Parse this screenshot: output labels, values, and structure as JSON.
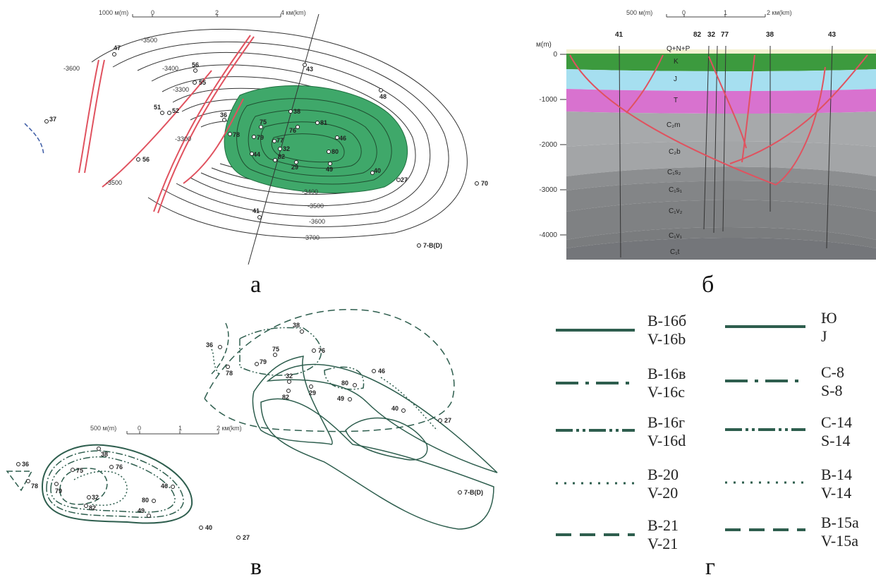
{
  "panel_a": {
    "letter": "а",
    "scale_label": "1000 м(m)",
    "scale_ticks": [
      "0",
      "2",
      "4 км(km)"
    ],
    "contour_labels": [
      "-3500",
      "-3400",
      "-3300",
      "-3300",
      "-3500",
      "-3600",
      "-3400",
      "-3500",
      "-3600",
      "-3700"
    ],
    "wells": [
      "47",
      "56",
      "55",
      "51",
      "52",
      "36",
      "78",
      "79",
      "75",
      "38",
      "76",
      "81",
      "43",
      "48",
      "46",
      "77",
      "32",
      "80",
      "44",
      "82",
      "29",
      "49",
      "40",
      "27",
      "56",
      "37",
      "41",
      "70",
      "7-В(D)"
    ],
    "colors": {
      "oil": "#3fa86a",
      "fault": "#e0525f",
      "contour": "#333333",
      "boundary": "#3b5ba5"
    }
  },
  "panel_b": {
    "letter": "б",
    "scale_label": "500 м(m)",
    "scale_ticks": [
      "0",
      "1",
      "2 км(km)"
    ],
    "y_label": "м(m)",
    "y_ticks": [
      "0",
      "-1000",
      "-2000",
      "-3000",
      "-4000"
    ],
    "wells": [
      "41",
      "82",
      "32",
      "77",
      "38",
      "43"
    ],
    "layers": [
      "Q+N+P",
      "K",
      "J",
      "T",
      "C₂m",
      "C₂b",
      "C₁s₂",
      "C₁s₁",
      "C₁v₂",
      "C₁v₁",
      "C₁t"
    ],
    "colors": {
      "K": "#3c9a3e",
      "J": "#a6dff0",
      "T": "#d872cf",
      "C2m": "#a7a9ab",
      "C2b": "#a3a5a7",
      "C1s2": "#8c8e90",
      "C1s1": "#838587",
      "C1v2": "#7f8183",
      "C1v1": "#7a7c7e",
      "C1t": "#74767a",
      "fault": "#e0525f"
    }
  },
  "panel_v": {
    "letter": "в",
    "scale_label": "500 м(m)",
    "scale_ticks": [
      "0",
      "1",
      "2 км(km)"
    ],
    "big_wells": [
      "38",
      "36",
      "76",
      "75",
      "79",
      "78",
      "32",
      "46",
      "80",
      "29",
      "82",
      "49",
      "40",
      "27",
      "7-В(D)"
    ],
    "small_wells": [
      "36",
      "38",
      "76",
      "78",
      "75",
      "79",
      "46",
      "32",
      "80",
      "82",
      "49",
      "40",
      "27"
    ],
    "color": "#2e5e4e"
  },
  "panel_g": {
    "letter": "г",
    "legend": [
      {
        "ru": "В-16б",
        "en": "V-16b",
        "style": "solid"
      },
      {
        "ru": "Ю",
        "en": "J",
        "style": "solid"
      },
      {
        "ru": "В-16в",
        "en": "V-16c",
        "style": "dashdot"
      },
      {
        "ru": "С-8",
        "en": "S-8",
        "style": "dashdot"
      },
      {
        "ru": "В-16г",
        "en": "V-16d",
        "style": "dashdotdot"
      },
      {
        "ru": "С-14",
        "en": "S-14",
        "style": "dashdotdot"
      },
      {
        "ru": "В-20",
        "en": "V-20",
        "style": "dotted"
      },
      {
        "ru": "В-14",
        "en": "V-14",
        "style": "dotted"
      },
      {
        "ru": "В-21",
        "en": "V-21",
        "style": "dashed"
      },
      {
        "ru": "В-15а",
        "en": "V-15a",
        "style": "dashed"
      }
    ],
    "color": "#2e5e4e"
  }
}
